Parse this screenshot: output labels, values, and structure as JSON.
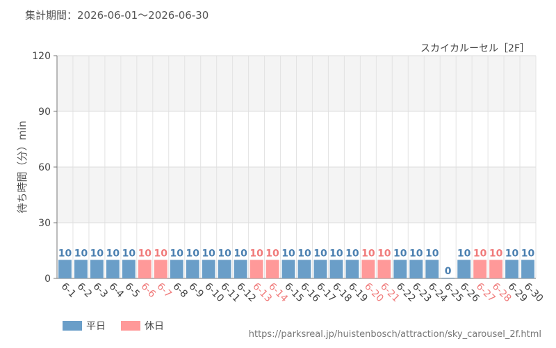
{
  "header": {
    "period": "集計期間：2026-06-01～2026-06-30"
  },
  "footer": {
    "source": "https://parksreal.jp/huistenbosch/attraction/sky_carousel_2f.html"
  },
  "legend": {
    "weekday": "平日",
    "holiday": "休日"
  },
  "colors": {
    "weekday": "#6a9ec8",
    "holiday": "#ff9999",
    "label_weekday": "#4a7fb0",
    "label_holiday": "#f07a7a"
  },
  "chart_data": {
    "type": "bar",
    "title": "スカイカルーセル［2F］",
    "ylabel": "待ち時間（分）min",
    "xlabel": "",
    "ylim": [
      0,
      120
    ],
    "yticks": [
      0,
      30,
      60,
      90,
      120
    ],
    "grid": true,
    "legend_position": "bottom-left",
    "categories": [
      "6-1",
      "6-2",
      "6-3",
      "6-4",
      "6-5",
      "6-6",
      "6-7",
      "6-8",
      "6-9",
      "6-10",
      "6-11",
      "6-12",
      "6-13",
      "6-14",
      "6-15",
      "6-16",
      "6-17",
      "6-18",
      "6-19",
      "6-20",
      "6-21",
      "6-22",
      "6-23",
      "6-24",
      "6-25",
      "6-26",
      "6-27",
      "6-28",
      "6-29",
      "6-30"
    ],
    "values": [
      10,
      10,
      10,
      10,
      10,
      10,
      10,
      10,
      10,
      10,
      10,
      10,
      10,
      10,
      10,
      10,
      10,
      10,
      10,
      10,
      10,
      10,
      10,
      10,
      0,
      10,
      10,
      10,
      10,
      10
    ],
    "day_type": [
      "weekday",
      "weekday",
      "weekday",
      "weekday",
      "weekday",
      "holiday",
      "holiday",
      "weekday",
      "weekday",
      "weekday",
      "weekday",
      "weekday",
      "holiday",
      "holiday",
      "weekday",
      "weekday",
      "weekday",
      "weekday",
      "weekday",
      "holiday",
      "holiday",
      "weekday",
      "weekday",
      "weekday",
      "weekday",
      "weekday",
      "holiday",
      "holiday",
      "weekday",
      "weekday"
    ]
  }
}
